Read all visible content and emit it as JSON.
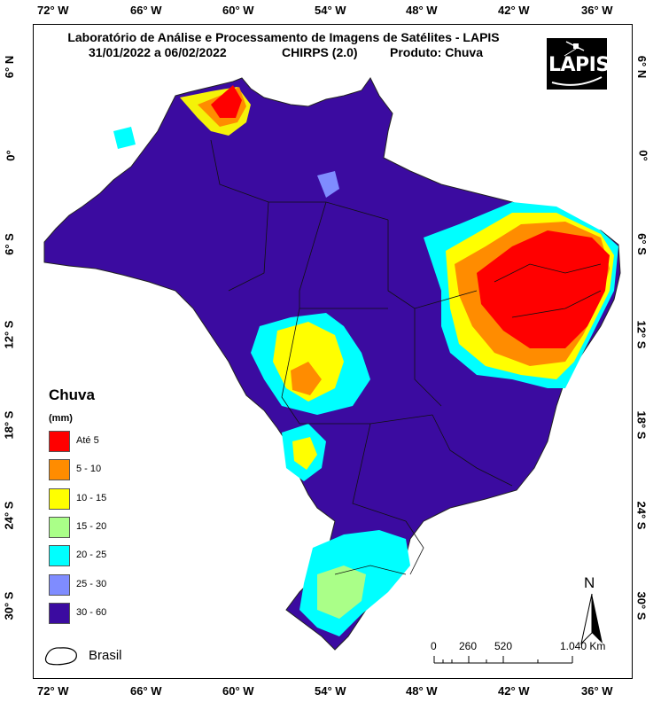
{
  "header": {
    "title": "Laboratório de Análise e Processamento de Imagens de Satélites - LAPIS",
    "period": "31/01/2022  a 06/02/2022",
    "dataset": "CHIRPS (2.0)",
    "product": "Produto: Chuva",
    "logo_text": "LAPIS"
  },
  "axes": {
    "longitude_labels": [
      "72° W",
      "66° W",
      "60° W",
      "54° W",
      "48° W",
      "42° W",
      "36° W"
    ],
    "latitude_labels": [
      "6° N",
      "0°",
      "6° S",
      "12° S",
      "18° S",
      "24° S",
      "30° S"
    ]
  },
  "legend": {
    "title": "Chuva",
    "unit": "(mm)",
    "items": [
      {
        "label": "Até 5",
        "color": "#ff0000"
      },
      {
        "label": "5 - 10",
        "color": "#ff8c00"
      },
      {
        "label": "10 - 15",
        "color": "#ffff00"
      },
      {
        "label": "15 - 20",
        "color": "#aaff88"
      },
      {
        "label": "20 - 25",
        "color": "#00ffff"
      },
      {
        "label": "25 - 30",
        "color": "#7f8cff"
      },
      {
        "label": "30 - 60",
        "color": "#3b0ba0"
      }
    ],
    "boundary_label": "Brasil"
  },
  "scale_bar": {
    "labels": [
      "0",
      "260",
      "520",
      "1.040 Km"
    ]
  },
  "north_arrow": {
    "letter": "N"
  }
}
